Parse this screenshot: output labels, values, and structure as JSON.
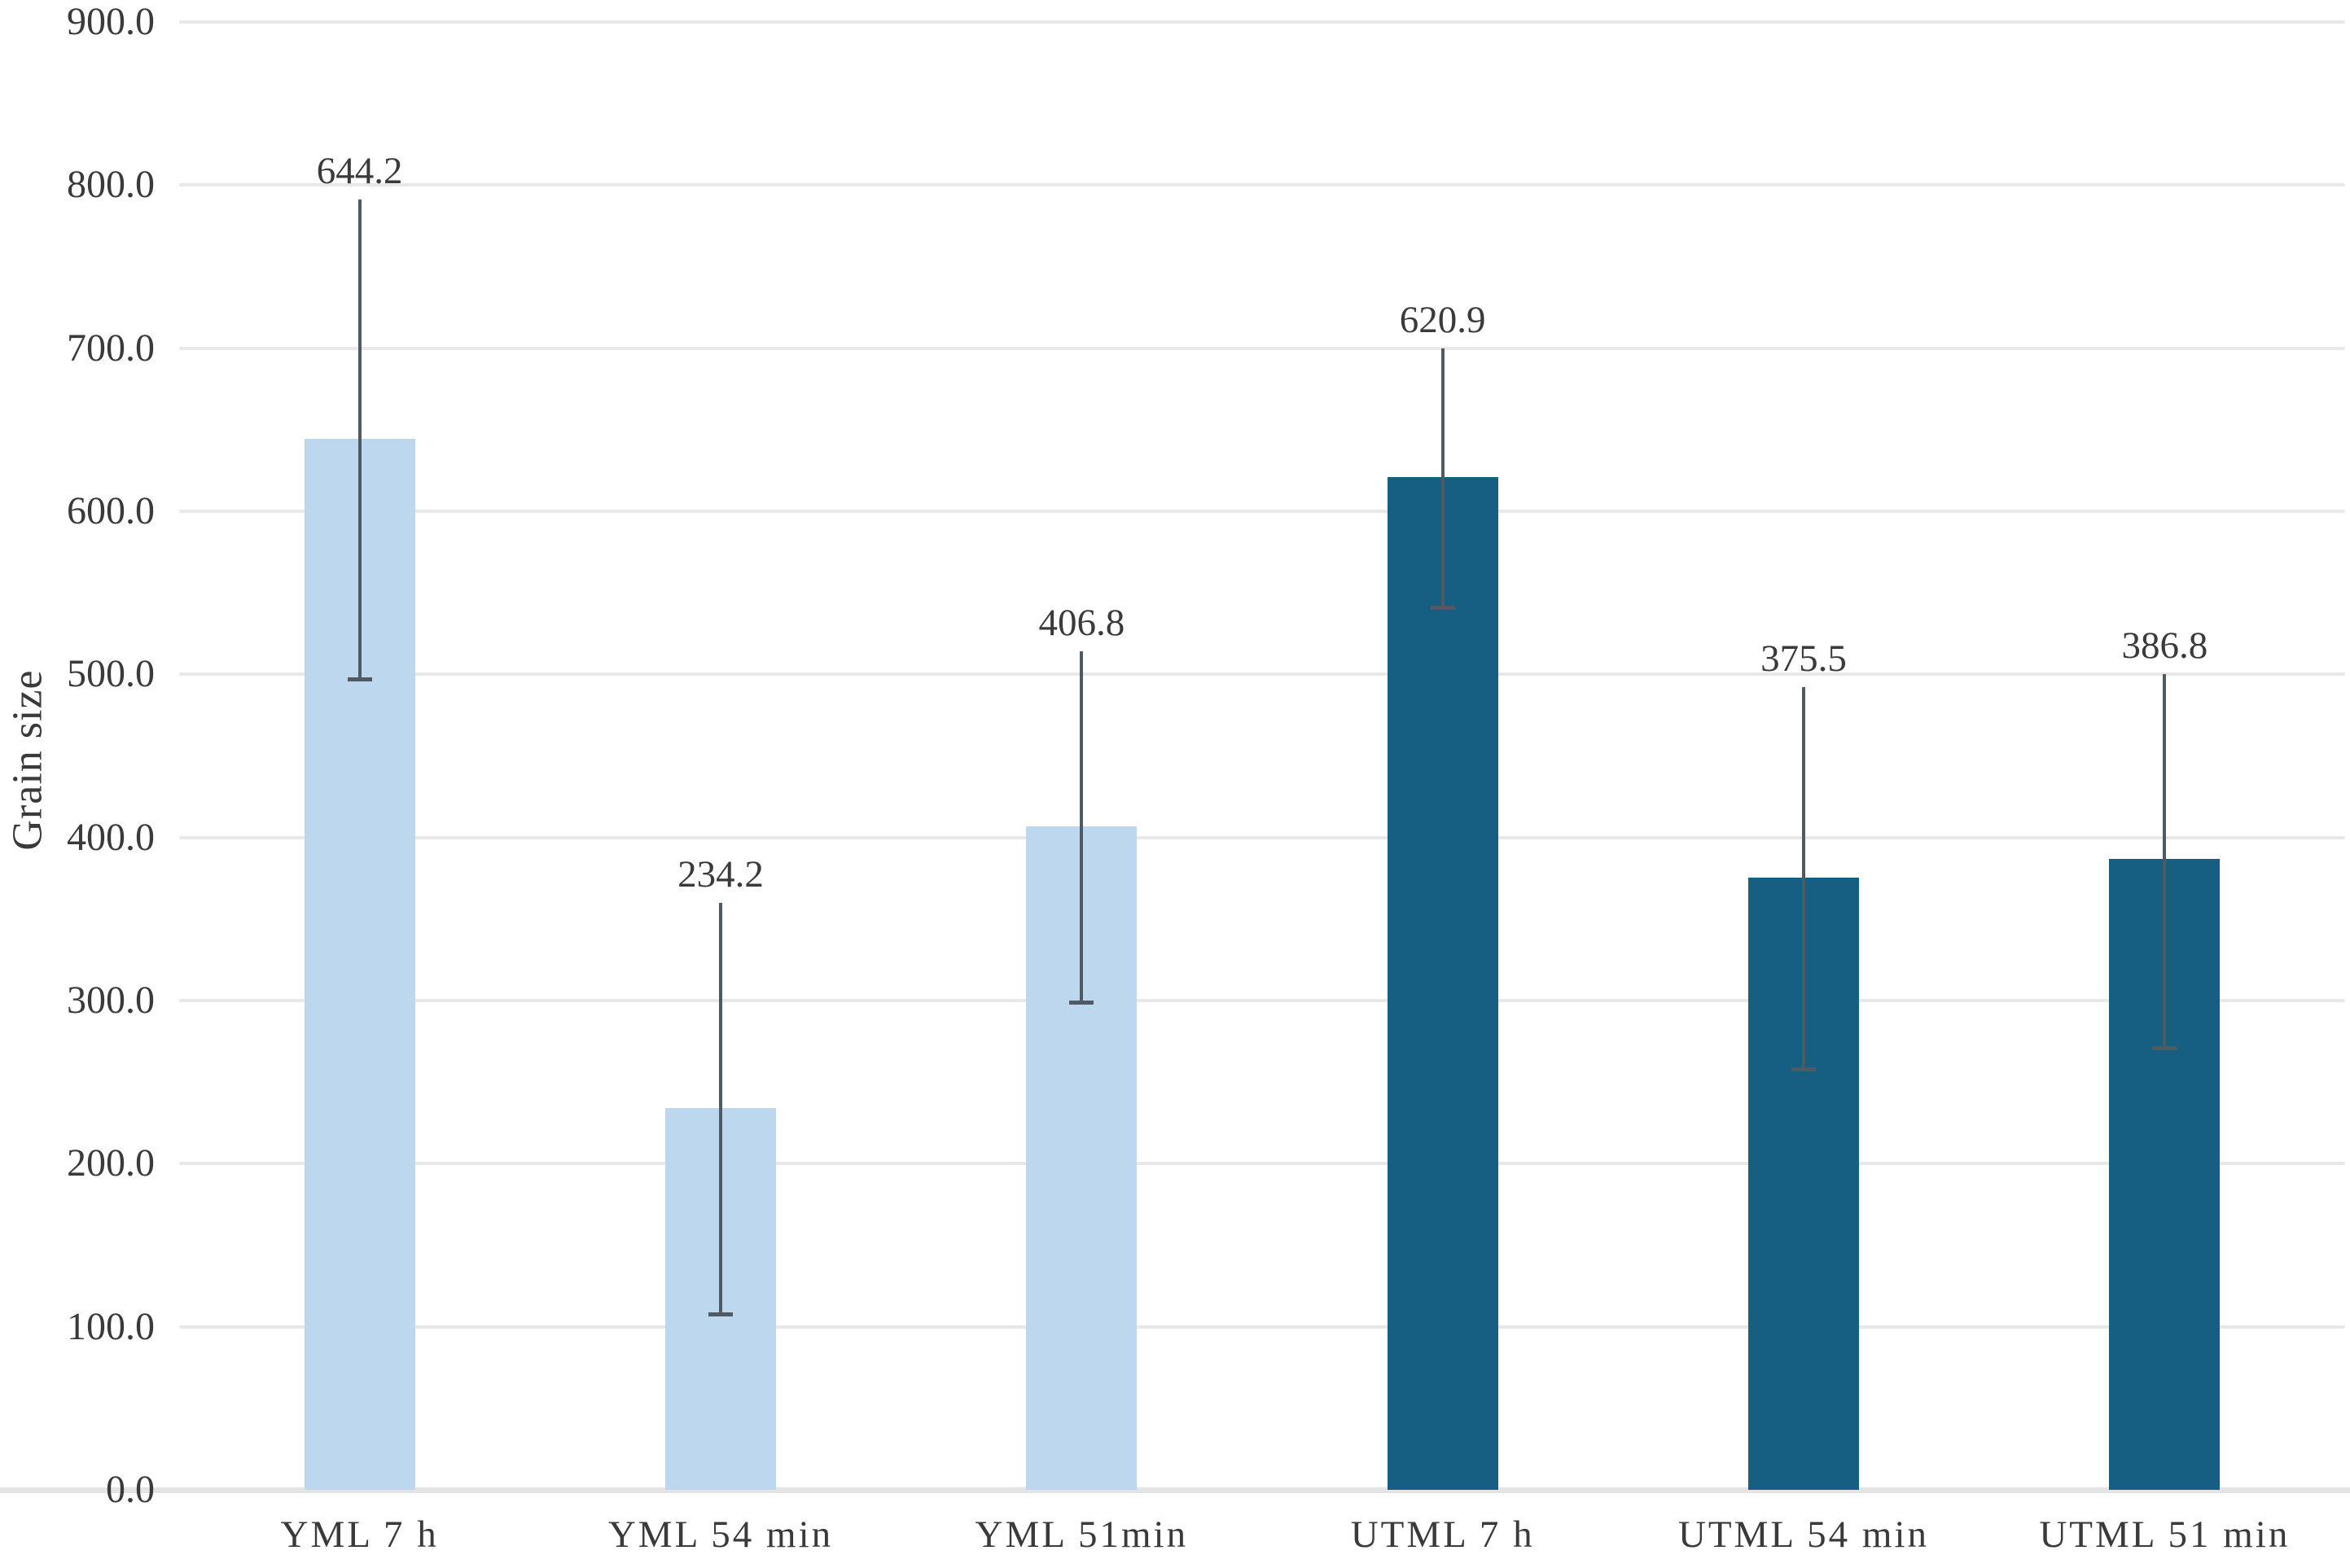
{
  "chart_data": {
    "type": "bar",
    "title": "",
    "ylabel": "Grain size",
    "xlabel": "",
    "categories": [
      "YML 7 h",
      "YML 54 min",
      "YML 51min",
      "UTML 7 h",
      "UTML 54 min",
      "UTML 51 min"
    ],
    "values": [
      644.2,
      234.2,
      406.8,
      620.9,
      375.5,
      386.8
    ],
    "data_labels": [
      "644.2",
      "234.2",
      "406.8",
      "620.9",
      "375.5",
      "386.8"
    ],
    "error_low": [
      497,
      108,
      299,
      541,
      258,
      271
    ],
    "error_high": [
      791,
      360,
      514,
      700,
      492,
      500
    ],
    "ylim": [
      0,
      900
    ],
    "ytick_interval": 100,
    "ytick_labels": [
      "0.0",
      "100.0",
      "200.0",
      "300.0",
      "400.0",
      "500.0",
      "600.0",
      "700.0",
      "800.0",
      "900.0"
    ],
    "grid": true,
    "legend_position": "none",
    "bar_colors": [
      "#BDD7EE",
      "#BDD7EE",
      "#BDD7EE",
      "#165F82",
      "#165F82",
      "#165F82"
    ]
  },
  "style_colors": {
    "light_series": "#BDD7EE",
    "dark_series": "#165F82",
    "gridline": "#E8E8E8",
    "axis_line": "#E4E4E4",
    "error_bar": "#505A64",
    "text": "#3a3a3a"
  }
}
